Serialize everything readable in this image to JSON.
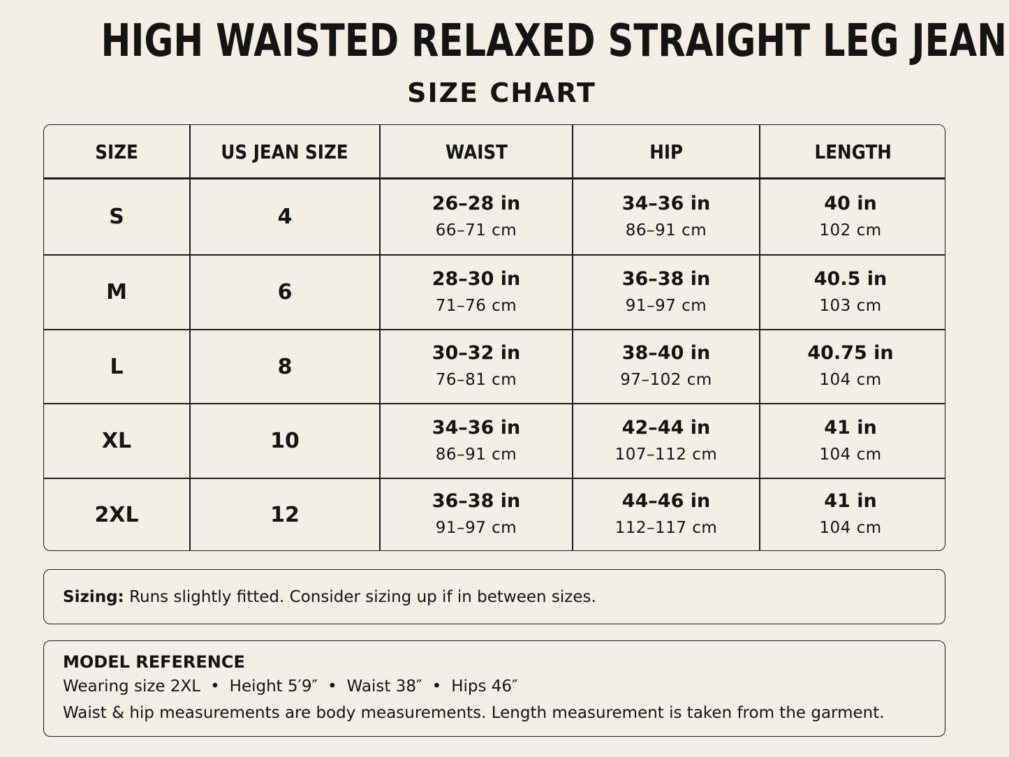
{
  "header": {
    "title": "HIGH WAISTED RELAXED STRAIGHT LEG JEANS",
    "subtitle": "SIZE CHART"
  },
  "table": {
    "columns": [
      "SIZE",
      "US JEAN SIZE",
      "WAIST",
      "HIP",
      "LENGTH"
    ],
    "rows": [
      {
        "size": "S",
        "us": "4",
        "waist_in": "26–28 in",
        "waist_cm": "66–71 cm",
        "hip_in": "34–36 in",
        "hip_cm": "86–91 cm",
        "len_in": "40 in",
        "len_cm": "102 cm"
      },
      {
        "size": "M",
        "us": "6",
        "waist_in": "28–30 in",
        "waist_cm": "71–76 cm",
        "hip_in": "36–38 in",
        "hip_cm": "91–97 cm",
        "len_in": "40.5 in",
        "len_cm": "103 cm"
      },
      {
        "size": "L",
        "us": "8",
        "waist_in": "30–32 in",
        "waist_cm": "76–81 cm",
        "hip_in": "38–40 in",
        "hip_cm": "97–102 cm",
        "len_in": "40.75 in",
        "len_cm": "104 cm"
      },
      {
        "size": "XL",
        "us": "10",
        "waist_in": "34–36 in",
        "waist_cm": "86–91 cm",
        "hip_in": "42–44 in",
        "hip_cm": "107–112 cm",
        "len_in": "41 in",
        "len_cm": "104 cm"
      },
      {
        "size": "2XL",
        "us": "12",
        "waist_in": "36–38 in",
        "waist_cm": "91–97 cm",
        "hip_in": "44–46 in",
        "hip_cm": "112–117 cm",
        "len_in": "41 in",
        "len_cm": "104 cm"
      }
    ]
  },
  "sizing_note": {
    "label": "Sizing:",
    "text": "Runs slightly fitted. Consider sizing up if in between sizes."
  },
  "model_reference": {
    "title": "MODEL REFERENCE",
    "items": [
      "Wearing size 2XL",
      "Height 5′9″",
      "Waist 38″",
      "Hips 46″"
    ],
    "separator": "•",
    "note": "Waist & hip measurements are body measurements. Length measurement is taken from the garment."
  }
}
